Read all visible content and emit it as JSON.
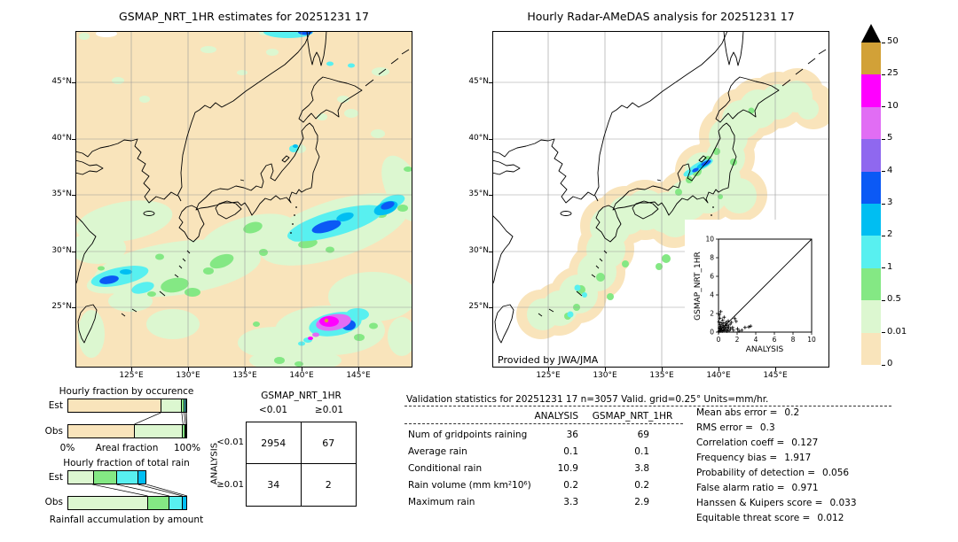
{
  "left_map": {
    "title": "GSMAP_NRT_1HR estimates for 20251231 17",
    "x_ticks": [
      "125°E",
      "130°E",
      "135°E",
      "140°E",
      "145°E"
    ],
    "y_ticks": [
      "45°N",
      "40°N",
      "35°N",
      "30°N",
      "25°N"
    ]
  },
  "right_map": {
    "title": "Hourly Radar-AMeDAS analysis for 20251231 17",
    "x_ticks": [
      "125°E",
      "130°E",
      "135°E",
      "140°E",
      "145°E"
    ],
    "y_ticks": [
      "45°N",
      "40°N",
      "35°N",
      "30°N",
      "25°N"
    ],
    "credit": "Provided by JWA/JMA"
  },
  "colorbar": {
    "units": "mm/hr",
    "tick_labels": [
      "50",
      "25",
      "10",
      "5",
      "4",
      "3",
      "2",
      "1",
      "0.5",
      "0.01",
      "0"
    ],
    "colors_top_to_bottom": [
      "#d2a137",
      "#ff00ff",
      "#e16df4",
      "#8f68ef",
      "#0b59f5",
      "#00bef2",
      "#58f0f0",
      "#84e884",
      "#dcf7d0",
      "#f9e4bb"
    ],
    "overflow_color": "#000000"
  },
  "occurrence_chart": {
    "title": "Hourly fraction by occurence",
    "rows": [
      "Est",
      "Obs"
    ],
    "axis": {
      "left": "0%",
      "center": "Areal fraction",
      "right": "100%"
    },
    "series": {
      "est": [
        78,
        17.5,
        2,
        1.5,
        1
      ],
      "obs": [
        56,
        40.5,
        2,
        1,
        0.5
      ]
    },
    "colors": [
      "#f9e4bb",
      "#dcf7d0",
      "#84e884",
      "#58f0f0",
      "#00bef2"
    ]
  },
  "amount_chart": {
    "title": "Hourly fraction of total rain",
    "rows": [
      "Est",
      "Obs"
    ],
    "xlabel": "Rainfall accumulation by amount",
    "series": {
      "est": [
        21,
        20,
        18,
        7
      ],
      "obs": [
        67,
        18,
        11,
        4
      ]
    },
    "colors": [
      "#dcf7d0",
      "#84e884",
      "#58f0f0",
      "#00bef2"
    ]
  },
  "contingency": {
    "header": "GSMAP_NRT_1HR",
    "col_labels": [
      "<0.01",
      "≥0.01"
    ],
    "row_axis": "ANALYSIS",
    "row_labels": [
      "<0.01",
      "≥0.01"
    ],
    "cells": [
      [
        "2954",
        "67"
      ],
      [
        "34",
        "2"
      ]
    ]
  },
  "stats": {
    "title": "Validation statistics for 20251231 17  n=3057 Valid. grid=0.25° Units=mm/hr.",
    "col_headers": [
      "ANALYSIS",
      "GSMAP_NRT_1HR"
    ],
    "rows": [
      {
        "label": "Num of gridpoints raining",
        "analysis": "36",
        "gsmap": "69"
      },
      {
        "label": "Average rain",
        "analysis": "0.1",
        "gsmap": "0.1"
      },
      {
        "label": "Conditional rain",
        "analysis": "10.9",
        "gsmap": "3.8"
      },
      {
        "label": "Rain volume (mm km²10⁶)",
        "analysis": "0.2",
        "gsmap": "0.2"
      },
      {
        "label": "Maximum rain",
        "analysis": "3.3",
        "gsmap": "2.9"
      }
    ]
  },
  "metrics": [
    {
      "label": "Mean abs error =",
      "value": "0.2"
    },
    {
      "label": "RMS error =",
      "value": "0.3"
    },
    {
      "label": "Correlation coeff =",
      "value": "0.127"
    },
    {
      "label": "Frequency bias =",
      "value": "1.917"
    },
    {
      "label": "Probability of detection =",
      "value": "0.056"
    },
    {
      "label": "False alarm ratio =",
      "value": "0.971"
    },
    {
      "label": "Hanssen & Kuipers score =",
      "value": "0.033"
    },
    {
      "label": "Equitable threat score =",
      "value": "0.012"
    }
  ],
  "inset": {
    "xlabel": "ANALYSIS",
    "ylabel": "GSMAP_NRT_1HR",
    "ticks": [
      "0",
      "2",
      "4",
      "6",
      "8",
      "10"
    ],
    "xlim": [
      0,
      10
    ],
    "ylim": [
      0,
      10
    ],
    "points": [
      [
        0.05,
        0.05
      ],
      [
        0.1,
        0.15
      ],
      [
        0.1,
        0.45
      ],
      [
        0.15,
        0.8
      ],
      [
        0.2,
        0.1
      ],
      [
        0.2,
        0.35
      ],
      [
        0.25,
        0.6
      ],
      [
        0.3,
        0.2
      ],
      [
        0.3,
        1.0
      ],
      [
        0.35,
        0.45
      ],
      [
        0.4,
        0.1
      ],
      [
        0.4,
        0.75
      ],
      [
        0.45,
        1.3
      ],
      [
        0.5,
        0.25
      ],
      [
        0.5,
        0.55
      ],
      [
        0.55,
        0.95
      ],
      [
        0.6,
        0.15
      ],
      [
        0.6,
        1.6
      ],
      [
        0.65,
        0.4
      ],
      [
        0.7,
        0.7
      ],
      [
        0.75,
        0.2
      ],
      [
        0.8,
        1.05
      ],
      [
        0.85,
        0.5
      ],
      [
        0.9,
        0.1
      ],
      [
        0.95,
        0.75
      ],
      [
        1.0,
        0.3
      ],
      [
        1.05,
        1.2
      ],
      [
        1.1,
        0.55
      ],
      [
        1.15,
        0.15
      ],
      [
        1.25,
        0.85
      ],
      [
        1.3,
        0.35
      ],
      [
        1.4,
        1.05
      ],
      [
        1.5,
        0.5
      ],
      [
        1.6,
        0.2
      ],
      [
        1.75,
        1.45
      ],
      [
        1.9,
        1.15
      ],
      [
        2.05,
        0.35
      ],
      [
        2.2,
        0.1
      ],
      [
        2.5,
        0.2
      ],
      [
        2.85,
        0.5
      ],
      [
        3.25,
        0.55
      ],
      [
        3.45,
        0.65
      ],
      [
        0.1,
        1.9
      ],
      [
        0.25,
        2.2
      ],
      [
        0.05,
        1.1
      ],
      [
        0.15,
        1.5
      ]
    ]
  },
  "chart_data": [
    {
      "type": "heatmap",
      "subtype": "precipitation-map",
      "title": "GSMAP_NRT_1HR estimates for 20251231 17",
      "units": "mm/hr",
      "lon_range": [
        120,
        150
      ],
      "lat_range": [
        20,
        50
      ],
      "colorbar_levels": [
        0,
        0.01,
        0.5,
        1,
        2,
        3,
        4,
        5,
        10,
        25,
        50
      ],
      "notable_features": [
        "Widespread light rain (0.01–0.5 mm/hr) south of ~35°N",
        "Rain band 1–4 mm/hr near 27–28°N, 121–126°E",
        "Rain band 1–4 mm/hr near 30–32°N, 141–147°E",
        "Intense cell 10–50 mm/hr (small >25 core) near 23°N, 139–141°E",
        "Narrow 1–3 mm/hr band along ~49°N, 137–141°E"
      ]
    },
    {
      "type": "heatmap",
      "subtype": "precipitation-map",
      "title": "Hourly Radar-AMeDAS analysis for 20251231 17",
      "units": "mm/hr",
      "lon_range": [
        120,
        150
      ],
      "lat_range": [
        20,
        50
      ],
      "credit": "Provided by JWA/JMA",
      "notable_features": [
        "Radar coverage band (0–0.01 mm/hr halo) along the Japanese archipelago",
        "Light rain 0.01–1 mm/hr over Sea-of-Japan coast and Nansei islands",
        "1–4 mm/hr band near 37.5°N, 138–139.5°E (Niigata coast)"
      ]
    },
    {
      "type": "bar",
      "title": "Hourly fraction by occurence",
      "orientation": "horizontal-stacked",
      "categories": [
        "Est",
        "Obs"
      ],
      "bins_mm_hr": [
        "0–0.01",
        "0.01–0.5",
        "0.5–1",
        "1–2",
        "2–3"
      ],
      "series": [
        {
          "name": "Est",
          "values": [
            78,
            17.5,
            2,
            1.5,
            1
          ]
        },
        {
          "name": "Obs",
          "values": [
            56,
            40.5,
            2,
            1,
            0.5
          ]
        }
      ],
      "xlabel": "Areal fraction",
      "xlim": [
        "0%",
        "100%"
      ]
    },
    {
      "type": "bar",
      "title": "Hourly fraction of total rain",
      "orientation": "horizontal-stacked",
      "categories": [
        "Est",
        "Obs"
      ],
      "bins_mm_hr": [
        "0.01–0.5",
        "0.5–1",
        "1–2",
        "2–3"
      ],
      "series": [
        {
          "name": "Est",
          "values": [
            21,
            20,
            18,
            7
          ]
        },
        {
          "name": "Obs",
          "values": [
            67,
            18,
            11,
            4
          ]
        }
      ],
      "xlabel": "Rainfall accumulation by amount"
    },
    {
      "type": "table",
      "title": "Contingency table GSMAP_NRT_1HR vs ANALYSIS (threshold 0.01 mm/hr)",
      "columns": [
        "GSMAP_NRT_1HR <0.01",
        "GSMAP_NRT_1HR ≥0.01"
      ],
      "rows": [
        {
          "label": "ANALYSIS <0.01",
          "values": [
            2954,
            67
          ]
        },
        {
          "label": "ANALYSIS ≥0.01",
          "values": [
            34,
            2
          ]
        }
      ]
    },
    {
      "type": "scatter",
      "title": "GSMAP_NRT_1HR vs ANALYSIS (inset)",
      "xlabel": "ANALYSIS",
      "ylabel": "GSMAP_NRT_1HR",
      "xlim": [
        0,
        10
      ],
      "ylim": [
        0,
        10
      ],
      "diagonal_reference_line": true,
      "points_ref": "inset.points"
    }
  ]
}
